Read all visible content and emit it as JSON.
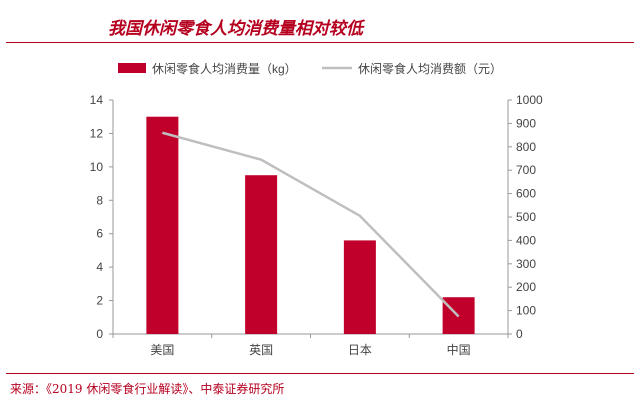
{
  "title": "我国休闲零食人均消费量相对较低",
  "source": "来源：《2019 休闲零食行业解读》、中泰证券研究所",
  "chart_data": {
    "type": "bar",
    "categories": [
      "美国",
      "英国",
      "日本",
      "中国"
    ],
    "series": [
      {
        "name": "休闲零食人均消费量（kg）",
        "type": "bar",
        "axis": "left",
        "color": "#c0002a",
        "values": [
          13,
          9.5,
          5.6,
          2.2
        ]
      },
      {
        "name": "休闲零食人均消费额（元）",
        "type": "line",
        "axis": "right",
        "color": "#bfbfbf",
        "values": [
          860,
          745,
          505,
          75
        ]
      }
    ],
    "y_left": {
      "range": [
        0,
        14
      ],
      "ticks": [
        0,
        2,
        4,
        6,
        8,
        10,
        12,
        14
      ]
    },
    "y_right": {
      "range": [
        0,
        1000
      ],
      "ticks": [
        0,
        100,
        200,
        300,
        400,
        500,
        600,
        700,
        800,
        900,
        1000
      ]
    },
    "legend": "top",
    "grid": false
  }
}
